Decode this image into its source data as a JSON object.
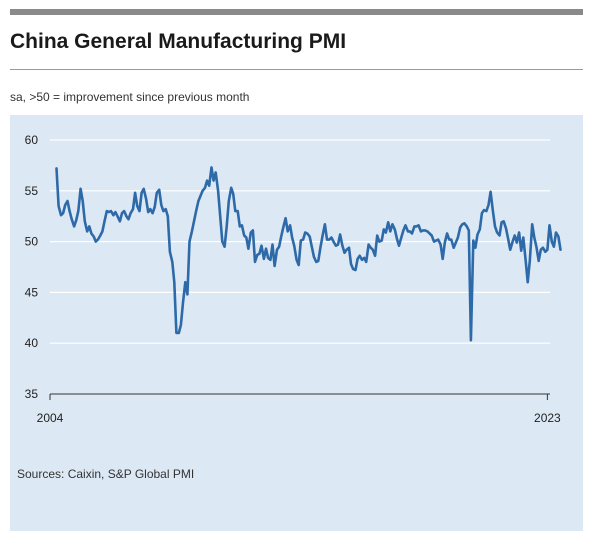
{
  "header": {
    "title": "China General Manufacturing PMI",
    "subtitle": "sa, >50 = improvement since previous month"
  },
  "footer": {
    "source": "Sources: Caixin, S&P Global PMI"
  },
  "colors": {
    "line": "#2e6aa8",
    "panel": "#dce9f5",
    "grid": "#ffffff",
    "axis": "#333333"
  },
  "chart_data": {
    "type": "line",
    "title": "China General Manufacturing PMI",
    "subtitle": "sa, >50 = improvement since previous month",
    "ylim": [
      35,
      60
    ],
    "yticks": [
      35,
      40,
      45,
      50,
      55,
      60
    ],
    "xlim": [
      2004.0,
      2023.1
    ],
    "xtick_labels": [
      {
        "x": 2004.0,
        "label": "2004"
      },
      {
        "x": 2023.0,
        "label": "2023"
      }
    ],
    "grid": "horizontal",
    "series": [
      {
        "points": [
          [
            2004.25,
            57.2
          ],
          [
            2004.33,
            53.5
          ],
          [
            2004.42,
            52.6
          ],
          [
            2004.5,
            52.8
          ],
          [
            2004.58,
            53.6
          ],
          [
            2004.67,
            54.0
          ],
          [
            2004.75,
            53.0
          ],
          [
            2004.83,
            52.2
          ],
          [
            2004.92,
            51.5
          ],
          [
            2005.0,
            52.1
          ],
          [
            2005.08,
            53.0
          ],
          [
            2005.17,
            55.2
          ],
          [
            2005.25,
            54.0
          ],
          [
            2005.33,
            52.0
          ],
          [
            2005.42,
            51.0
          ],
          [
            2005.5,
            51.5
          ],
          [
            2005.58,
            50.8
          ],
          [
            2005.67,
            50.5
          ],
          [
            2005.75,
            50.0
          ],
          [
            2005.83,
            50.2
          ],
          [
            2005.92,
            50.6
          ],
          [
            2006.0,
            51.0
          ],
          [
            2006.08,
            52.0
          ],
          [
            2006.17,
            53.0
          ],
          [
            2006.25,
            52.9
          ],
          [
            2006.33,
            53.0
          ],
          [
            2006.42,
            52.6
          ],
          [
            2006.5,
            52.9
          ],
          [
            2006.58,
            52.5
          ],
          [
            2006.67,
            52.0
          ],
          [
            2006.75,
            52.8
          ],
          [
            2006.83,
            53.0
          ],
          [
            2006.92,
            52.5
          ],
          [
            2007.0,
            52.2
          ],
          [
            2007.08,
            52.8
          ],
          [
            2007.17,
            53.2
          ],
          [
            2007.25,
            54.8
          ],
          [
            2007.33,
            53.5
          ],
          [
            2007.42,
            53.0
          ],
          [
            2007.5,
            54.8
          ],
          [
            2007.58,
            55.2
          ],
          [
            2007.67,
            54.2
          ],
          [
            2007.75,
            52.9
          ],
          [
            2007.83,
            53.2
          ],
          [
            2007.92,
            52.8
          ],
          [
            2008.0,
            53.4
          ],
          [
            2008.08,
            54.8
          ],
          [
            2008.17,
            55.1
          ],
          [
            2008.25,
            53.6
          ],
          [
            2008.33,
            53.0
          ],
          [
            2008.42,
            53.2
          ],
          [
            2008.5,
            52.5
          ],
          [
            2008.58,
            49.0
          ],
          [
            2008.67,
            48.0
          ],
          [
            2008.75,
            46.0
          ],
          [
            2008.83,
            41.0
          ],
          [
            2008.92,
            41.0
          ],
          [
            2009.0,
            41.8
          ],
          [
            2009.08,
            44.0
          ],
          [
            2009.17,
            46.0
          ],
          [
            2009.25,
            44.8
          ],
          [
            2009.33,
            50.0
          ],
          [
            2009.42,
            51.0
          ],
          [
            2009.5,
            52.0
          ],
          [
            2009.58,
            53.0
          ],
          [
            2009.67,
            54.0
          ],
          [
            2009.75,
            54.5
          ],
          [
            2009.83,
            55.0
          ],
          [
            2009.92,
            55.3
          ],
          [
            2010.0,
            56.0
          ],
          [
            2010.08,
            55.5
          ],
          [
            2010.17,
            57.3
          ],
          [
            2010.25,
            56.0
          ],
          [
            2010.33,
            56.8
          ],
          [
            2010.42,
            55.0
          ],
          [
            2010.5,
            52.5
          ],
          [
            2010.58,
            50.0
          ],
          [
            2010.67,
            49.5
          ],
          [
            2010.75,
            51.5
          ],
          [
            2010.83,
            54.0
          ],
          [
            2010.92,
            55.3
          ],
          [
            2011.0,
            54.7
          ],
          [
            2011.08,
            53.0
          ],
          [
            2011.17,
            53.0
          ],
          [
            2011.25,
            51.5
          ],
          [
            2011.33,
            51.6
          ],
          [
            2011.42,
            50.6
          ],
          [
            2011.5,
            50.4
          ],
          [
            2011.58,
            49.3
          ],
          [
            2011.67,
            50.9
          ],
          [
            2011.75,
            51.1
          ],
          [
            2011.83,
            48.0
          ],
          [
            2011.92,
            48.7
          ],
          [
            2012.0,
            48.8
          ],
          [
            2012.08,
            49.6
          ],
          [
            2012.17,
            48.3
          ],
          [
            2012.25,
            49.3
          ],
          [
            2012.33,
            48.4
          ],
          [
            2012.42,
            48.2
          ],
          [
            2012.5,
            49.7
          ],
          [
            2012.58,
            47.6
          ],
          [
            2012.67,
            49.2
          ],
          [
            2012.75,
            49.5
          ],
          [
            2012.83,
            50.5
          ],
          [
            2012.92,
            51.5
          ],
          [
            2013.0,
            52.3
          ],
          [
            2013.08,
            51.0
          ],
          [
            2013.17,
            51.6
          ],
          [
            2013.25,
            50.4
          ],
          [
            2013.33,
            49.6
          ],
          [
            2013.42,
            48.2
          ],
          [
            2013.5,
            47.7
          ],
          [
            2013.58,
            50.1
          ],
          [
            2013.67,
            50.2
          ],
          [
            2013.75,
            50.9
          ],
          [
            2013.83,
            50.8
          ],
          [
            2013.92,
            50.5
          ],
          [
            2014.0,
            49.5
          ],
          [
            2014.08,
            48.5
          ],
          [
            2014.17,
            48.0
          ],
          [
            2014.25,
            48.1
          ],
          [
            2014.33,
            49.4
          ],
          [
            2014.42,
            50.7
          ],
          [
            2014.5,
            51.7
          ],
          [
            2014.58,
            50.2
          ],
          [
            2014.67,
            50.2
          ],
          [
            2014.75,
            50.4
          ],
          [
            2014.83,
            50.0
          ],
          [
            2014.92,
            49.6
          ],
          [
            2015.0,
            49.7
          ],
          [
            2015.08,
            50.7
          ],
          [
            2015.17,
            49.6
          ],
          [
            2015.25,
            48.9
          ],
          [
            2015.33,
            49.2
          ],
          [
            2015.42,
            49.4
          ],
          [
            2015.5,
            47.8
          ],
          [
            2015.58,
            47.3
          ],
          [
            2015.67,
            47.2
          ],
          [
            2015.75,
            48.3
          ],
          [
            2015.83,
            48.6
          ],
          [
            2015.92,
            48.2
          ],
          [
            2016.0,
            48.4
          ],
          [
            2016.08,
            48.0
          ],
          [
            2016.17,
            49.7
          ],
          [
            2016.25,
            49.4
          ],
          [
            2016.33,
            49.2
          ],
          [
            2016.42,
            48.6
          ],
          [
            2016.5,
            50.6
          ],
          [
            2016.58,
            50.0
          ],
          [
            2016.67,
            50.1
          ],
          [
            2016.75,
            51.2
          ],
          [
            2016.83,
            50.9
          ],
          [
            2016.92,
            51.9
          ],
          [
            2017.0,
            51.0
          ],
          [
            2017.08,
            51.7
          ],
          [
            2017.17,
            51.2
          ],
          [
            2017.25,
            50.3
          ],
          [
            2017.33,
            49.6
          ],
          [
            2017.42,
            50.4
          ],
          [
            2017.5,
            51.1
          ],
          [
            2017.58,
            51.6
          ],
          [
            2017.67,
            51.0
          ],
          [
            2017.75,
            51.0
          ],
          [
            2017.83,
            50.8
          ],
          [
            2017.92,
            51.5
          ],
          [
            2018.0,
            51.5
          ],
          [
            2018.08,
            51.6
          ],
          [
            2018.17,
            51.0
          ],
          [
            2018.25,
            51.1
          ],
          [
            2018.33,
            51.1
          ],
          [
            2018.42,
            51.0
          ],
          [
            2018.5,
            50.8
          ],
          [
            2018.58,
            50.6
          ],
          [
            2018.67,
            50.0
          ],
          [
            2018.75,
            50.1
          ],
          [
            2018.83,
            50.2
          ],
          [
            2018.92,
            49.7
          ],
          [
            2019.0,
            48.3
          ],
          [
            2019.08,
            49.9
          ],
          [
            2019.17,
            50.8
          ],
          [
            2019.25,
            50.2
          ],
          [
            2019.33,
            50.2
          ],
          [
            2019.42,
            49.4
          ],
          [
            2019.5,
            49.9
          ],
          [
            2019.58,
            50.4
          ],
          [
            2019.67,
            51.4
          ],
          [
            2019.75,
            51.7
          ],
          [
            2019.83,
            51.8
          ],
          [
            2019.92,
            51.5
          ],
          [
            2020.0,
            51.1
          ],
          [
            2020.08,
            40.3
          ],
          [
            2020.17,
            50.1
          ],
          [
            2020.25,
            49.4
          ],
          [
            2020.33,
            50.7
          ],
          [
            2020.42,
            51.2
          ],
          [
            2020.5,
            52.8
          ],
          [
            2020.58,
            53.1
          ],
          [
            2020.67,
            53.0
          ],
          [
            2020.75,
            53.6
          ],
          [
            2020.83,
            54.9
          ],
          [
            2020.92,
            53.0
          ],
          [
            2021.0,
            51.5
          ],
          [
            2021.08,
            50.9
          ],
          [
            2021.17,
            50.6
          ],
          [
            2021.25,
            51.9
          ],
          [
            2021.33,
            52.0
          ],
          [
            2021.42,
            51.3
          ],
          [
            2021.5,
            50.3
          ],
          [
            2021.58,
            49.2
          ],
          [
            2021.67,
            50.0
          ],
          [
            2021.75,
            50.6
          ],
          [
            2021.83,
            49.9
          ],
          [
            2021.92,
            50.9
          ],
          [
            2022.0,
            49.1
          ],
          [
            2022.08,
            50.4
          ],
          [
            2022.17,
            48.1
          ],
          [
            2022.25,
            46.0
          ],
          [
            2022.33,
            48.1
          ],
          [
            2022.42,
            51.7
          ],
          [
            2022.5,
            50.4
          ],
          [
            2022.58,
            49.5
          ],
          [
            2022.67,
            48.1
          ],
          [
            2022.75,
            49.2
          ],
          [
            2022.83,
            49.4
          ],
          [
            2022.92,
            49.0
          ],
          [
            2023.0,
            49.2
          ],
          [
            2023.08,
            51.6
          ],
          [
            2023.17,
            50.0
          ],
          [
            2023.25,
            49.5
          ],
          [
            2023.33,
            50.9
          ],
          [
            2023.42,
            50.5
          ],
          [
            2023.5,
            49.2
          ]
        ]
      }
    ]
  }
}
